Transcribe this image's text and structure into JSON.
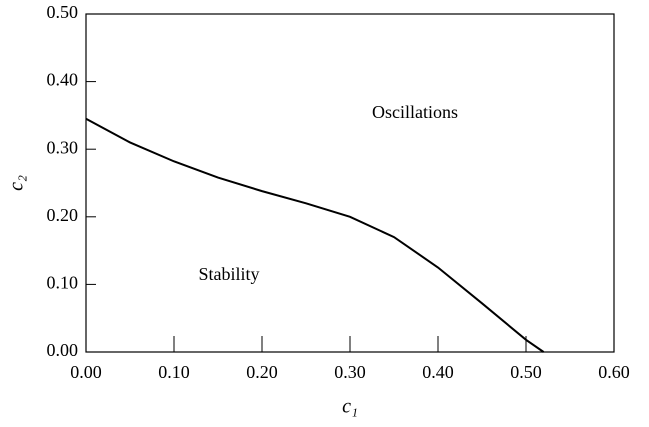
{
  "chart_data": {
    "type": "line",
    "x_label": "c₁",
    "y_label": "c₂",
    "annotations": [
      "Oscillations",
      "Stability"
    ],
    "x": [
      0,
      0.05,
      0.1,
      0.15,
      0.2,
      0.25,
      0.3,
      0.35,
      0.4,
      0.45,
      0.5,
      0.52
    ],
    "series": [
      {
        "color": "#000000",
        "values": [
          0.345,
          0.31,
          0.282,
          0.258,
          0.238,
          0.22,
          0.2,
          0.17,
          0.125,
          0.072,
          0.018,
          0
        ]
      }
    ],
    "xlim": [
      0,
      0.6
    ],
    "ylim": [
      0,
      0.5
    ],
    "xticks": [
      {
        "value": 0,
        "label": "0.00"
      },
      {
        "value": 0.1,
        "label": "0.10"
      },
      {
        "value": 0.2,
        "label": "0.20"
      },
      {
        "value": 0.3,
        "label": "0.30"
      },
      {
        "value": 0.4,
        "label": "0.40"
      },
      {
        "value": 0.5,
        "label": "0.50"
      },
      {
        "value": 0.6,
        "label": "0.60"
      }
    ],
    "yticks": [
      {
        "value": 0,
        "label": "0.00"
      },
      {
        "value": 0.1,
        "label": "0.10"
      },
      {
        "value": 0.2,
        "label": "0.20"
      },
      {
        "value": 0.3,
        "label": "0.30"
      },
      {
        "value": 0.4,
        "label": "0.40"
      },
      {
        "value": 0.5,
        "label": "0.50"
      }
    ],
    "grid": false
  }
}
